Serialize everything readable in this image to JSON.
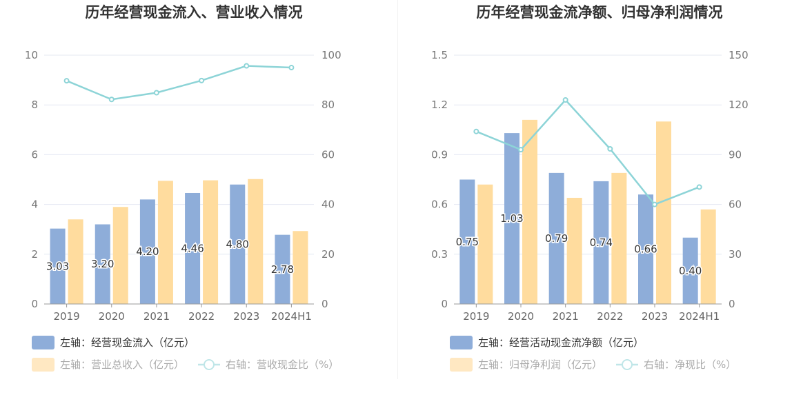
{
  "colors": {
    "bar_primary": "#8eadd9",
    "bar_secondary": "#ffdc9e",
    "line": "#8dd4d7",
    "grid": "#e4e8f2",
    "axis": "#9a9a9a"
  },
  "chart_data": [
    {
      "type": "bar",
      "title": "历年经营现金流入、营业收入情况",
      "categories": [
        "2019",
        "2020",
        "2021",
        "2022",
        "2023",
        "2024H1"
      ],
      "left_axis": {
        "ylim": [
          0,
          10
        ],
        "ticks": [
          "0",
          "2",
          "4",
          "6",
          "8",
          "10"
        ]
      },
      "right_axis": {
        "ylim": [
          0,
          100
        ],
        "ticks": [
          "0",
          "20",
          "40",
          "60",
          "80",
          "100"
        ]
      },
      "grid": true,
      "legend_position": "bottom",
      "series": [
        {
          "name": "左轴：经营现金流入（亿元）",
          "type": "bar",
          "axis": "left",
          "values": [
            3.03,
            3.2,
            4.2,
            4.46,
            4.8,
            2.78
          ],
          "labels": [
            "3.03",
            "3.20",
            "4.20",
            "4.46",
            "4.80",
            "2.78"
          ]
        },
        {
          "name": "左轴：营业总收入（亿元）",
          "type": "bar",
          "axis": "left",
          "values": [
            3.4,
            3.9,
            4.95,
            4.97,
            5.02,
            2.93
          ]
        },
        {
          "name": "右轴：营收现金比（%）",
          "type": "line",
          "axis": "right",
          "values": [
            89.7,
            82.2,
            84.9,
            89.8,
            95.7,
            95.0
          ]
        }
      ]
    },
    {
      "type": "bar",
      "title": "历年经营现金流净额、归母净利润情况",
      "categories": [
        "2019",
        "2020",
        "2021",
        "2022",
        "2023",
        "2024H1"
      ],
      "left_axis": {
        "ylim": [
          0,
          1.5
        ],
        "ticks": [
          "0",
          "0.3",
          "0.6",
          "0.9",
          "1.2",
          "1.5"
        ]
      },
      "right_axis": {
        "ylim": [
          0,
          150
        ],
        "ticks": [
          "0",
          "30",
          "60",
          "90",
          "120",
          "150"
        ]
      },
      "grid": true,
      "legend_position": "bottom",
      "series": [
        {
          "name": "左轴：经营活动现金流净额（亿元）",
          "type": "bar",
          "axis": "left",
          "values": [
            0.75,
            1.03,
            0.79,
            0.74,
            0.66,
            0.4
          ],
          "labels": [
            "0.75",
            "1.03",
            "0.79",
            "0.74",
            "0.66",
            "0.40"
          ]
        },
        {
          "name": "左轴：归母净利润（亿元）",
          "type": "bar",
          "axis": "left",
          "values": [
            0.72,
            1.11,
            0.64,
            0.79,
            1.1,
            0.57
          ]
        },
        {
          "name": "右轴：净现比（%）",
          "type": "line",
          "axis": "right",
          "values": [
            104,
            93,
            123,
            93.5,
            60,
            70.5
          ]
        }
      ]
    }
  ]
}
